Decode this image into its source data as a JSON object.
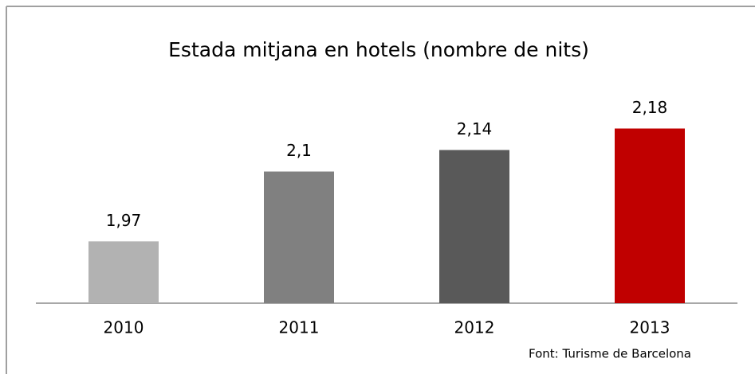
{
  "chart_data": {
    "type": "bar",
    "title": "Estada mitjana en hotels (nombre de nits)",
    "categories": [
      "2010",
      "2011",
      "2012",
      "2013"
    ],
    "values": [
      1.97,
      2.1,
      2.14,
      2.18
    ],
    "value_labels": [
      "1,97",
      "2,1",
      "2,14",
      "2,18"
    ],
    "colors": [
      "#b2b2b2",
      "#808080",
      "#595959",
      "#c00000"
    ],
    "ylim": [
      1.855,
      2.2
    ],
    "source": "Font: Turisme de Barcelona"
  }
}
